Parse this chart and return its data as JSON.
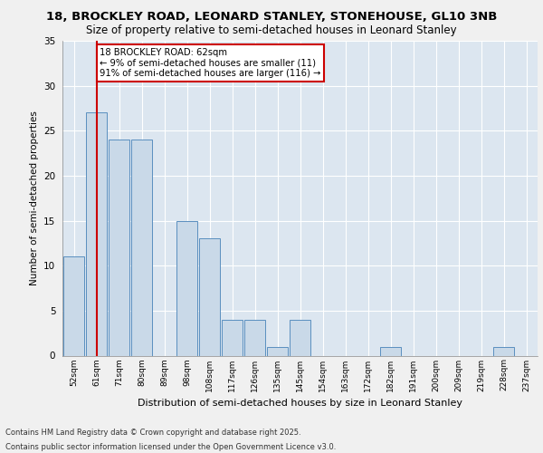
{
  "title_line1": "18, BROCKLEY ROAD, LEONARD STANLEY, STONEHOUSE, GL10 3NB",
  "title_line2": "Size of property relative to semi-detached houses in Leonard Stanley",
  "xlabel": "Distribution of semi-detached houses by size in Leonard Stanley",
  "ylabel": "Number of semi-detached properties",
  "categories": [
    "52sqm",
    "61sqm",
    "71sqm",
    "80sqm",
    "89sqm",
    "98sqm",
    "108sqm",
    "117sqm",
    "126sqm",
    "135sqm",
    "145sqm",
    "154sqm",
    "163sqm",
    "172sqm",
    "182sqm",
    "191sqm",
    "200sqm",
    "209sqm",
    "219sqm",
    "228sqm",
    "237sqm"
  ],
  "values": [
    11,
    27,
    24,
    24,
    0,
    15,
    13,
    4,
    4,
    1,
    4,
    0,
    0,
    0,
    1,
    0,
    0,
    0,
    0,
    1,
    0
  ],
  "bar_color": "#c9d9e8",
  "bar_edge_color": "#5a8fbf",
  "property_line_x": 1.0,
  "annotation_title": "18 BROCKLEY ROAD: 62sqm",
  "annotation_line2": "← 9% of semi-detached houses are smaller (11)",
  "annotation_line3": "91% of semi-detached houses are larger (116) →",
  "annotation_box_color": "#cc0000",
  "ylim": [
    0,
    35
  ],
  "yticks": [
    0,
    5,
    10,
    15,
    20,
    25,
    30,
    35
  ],
  "background_color": "#dce6f0",
  "fig_background": "#f0f0f0",
  "footer_line1": "Contains HM Land Registry data © Crown copyright and database right 2025.",
  "footer_line2": "Contains public sector information licensed under the Open Government Licence v3.0."
}
